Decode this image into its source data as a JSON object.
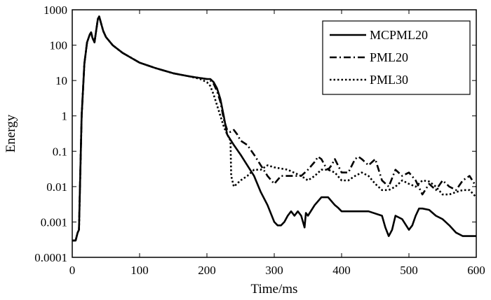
{
  "chart_data": {
    "type": "line",
    "title": "",
    "xlabel": "Time/ms",
    "ylabel": "Energy",
    "xlim": [
      0,
      600
    ],
    "ylim": [
      0.0001,
      1000
    ],
    "yscale": "log",
    "xticks": [
      0,
      100,
      200,
      300,
      400,
      500,
      600
    ],
    "xtick_labels": [
      "0",
      "100",
      "200",
      "300",
      "400",
      "500",
      "600"
    ],
    "yticks": [
      0.0001,
      0.001,
      0.01,
      0.1,
      1,
      10,
      100,
      1000
    ],
    "ytick_labels": [
      "0.0001",
      "0.001",
      "0.01",
      "0.1",
      "1",
      "10",
      "100",
      "1000"
    ],
    "grid": false,
    "legend_position": "top-right",
    "series": [
      {
        "name": "MCPML20",
        "line_style": "solid",
        "color": "#000000",
        "x": [
          0,
          5,
          8,
          10,
          14,
          18,
          22,
          26,
          28,
          30,
          33,
          36,
          38,
          40,
          43,
          46,
          50,
          60,
          75,
          100,
          125,
          150,
          175,
          200,
          205,
          210,
          215,
          220,
          225,
          230,
          240,
          250,
          260,
          270,
          280,
          290,
          300,
          305,
          310,
          315,
          320,
          325,
          330,
          335,
          340,
          345,
          347,
          350,
          360,
          370,
          380,
          390,
          395,
          400,
          420,
          440,
          460,
          465,
          470,
          475,
          480,
          490,
          500,
          505,
          510,
          515,
          520,
          530,
          540,
          550,
          560,
          570,
          580,
          590,
          600
        ],
        "y": [
          0.0003,
          0.0003,
          0.0005,
          0.0006,
          1.0,
          30,
          120,
          200,
          230,
          160,
          120,
          300,
          550,
          650,
          400,
          250,
          170,
          100,
          60,
          32,
          22,
          16,
          13,
          11,
          11,
          9,
          6,
          3,
          1,
          0.3,
          0.15,
          0.08,
          0.04,
          0.02,
          0.007,
          0.003,
          0.001,
          0.0008,
          0.0008,
          0.001,
          0.0015,
          0.002,
          0.0015,
          0.002,
          0.0015,
          0.0007,
          0.0018,
          0.0015,
          0.003,
          0.005,
          0.005,
          0.003,
          0.0025,
          0.002,
          0.002,
          0.002,
          0.0015,
          0.0007,
          0.0004,
          0.0006,
          0.0015,
          0.0012,
          0.0006,
          0.0008,
          0.0015,
          0.0024,
          0.0024,
          0.0022,
          0.0015,
          0.0012,
          0.0008,
          0.0005,
          0.0004,
          0.0004,
          0.0004
        ]
      },
      {
        "name": "PML20",
        "line_style": "dash-dot",
        "color": "#000000",
        "x": [
          0,
          5,
          8,
          10,
          14,
          18,
          22,
          26,
          28,
          30,
          33,
          36,
          38,
          40,
          43,
          46,
          50,
          60,
          75,
          100,
          125,
          150,
          175,
          200,
          205,
          210,
          215,
          220,
          225,
          230,
          235,
          240,
          245,
          250,
          260,
          270,
          280,
          290,
          300,
          310,
          320,
          340,
          350,
          360,
          365,
          370,
          375,
          380,
          385,
          390,
          400,
          410,
          420,
          425,
          430,
          440,
          450,
          460,
          470,
          480,
          490,
          500,
          510,
          520,
          530,
          540,
          550,
          560,
          570,
          580,
          590,
          600
        ],
        "y": [
          0.0003,
          0.0003,
          0.0005,
          0.0006,
          1.0,
          30,
          120,
          200,
          230,
          160,
          120,
          300,
          550,
          650,
          400,
          250,
          170,
          100,
          60,
          32,
          22,
          16,
          13,
          11,
          10,
          8,
          5,
          2.5,
          0.8,
          0.4,
          0.35,
          0.4,
          0.3,
          0.2,
          0.15,
          0.08,
          0.04,
          0.02,
          0.012,
          0.02,
          0.02,
          0.02,
          0.03,
          0.05,
          0.07,
          0.06,
          0.04,
          0.03,
          0.04,
          0.06,
          0.025,
          0.025,
          0.06,
          0.07,
          0.06,
          0.04,
          0.06,
          0.015,
          0.01,
          0.03,
          0.02,
          0.025,
          0.015,
          0.006,
          0.012,
          0.008,
          0.015,
          0.01,
          0.008,
          0.015,
          0.02,
          0.01
        ]
      },
      {
        "name": "PML30",
        "line_style": "dotted",
        "color": "#000000",
        "x": [
          0,
          5,
          8,
          10,
          14,
          18,
          22,
          26,
          28,
          30,
          33,
          36,
          38,
          40,
          43,
          46,
          50,
          60,
          75,
          100,
          125,
          150,
          175,
          190,
          200,
          205,
          210,
          215,
          220,
          225,
          230,
          235,
          236,
          240,
          250,
          260,
          270,
          280,
          290,
          300,
          320,
          340,
          350,
          360,
          370,
          380,
          390,
          400,
          410,
          420,
          430,
          440,
          450,
          460,
          470,
          480,
          490,
          500,
          510,
          520,
          530,
          540,
          550,
          560,
          570,
          580,
          590,
          600
        ],
        "y": [
          0.0003,
          0.0003,
          0.0005,
          0.0006,
          1.0,
          30,
          120,
          200,
          230,
          160,
          120,
          300,
          550,
          650,
          400,
          250,
          170,
          100,
          60,
          32,
          22,
          16,
          13,
          11,
          9,
          7,
          4,
          2,
          1,
          0.5,
          0.3,
          0.2,
          0.02,
          0.01,
          0.015,
          0.02,
          0.03,
          0.03,
          0.04,
          0.035,
          0.03,
          0.02,
          0.015,
          0.02,
          0.03,
          0.03,
          0.025,
          0.015,
          0.015,
          0.02,
          0.025,
          0.02,
          0.012,
          0.008,
          0.008,
          0.01,
          0.015,
          0.012,
          0.01,
          0.015,
          0.014,
          0.01,
          0.006,
          0.006,
          0.007,
          0.008,
          0.008,
          0.005
        ]
      }
    ]
  }
}
